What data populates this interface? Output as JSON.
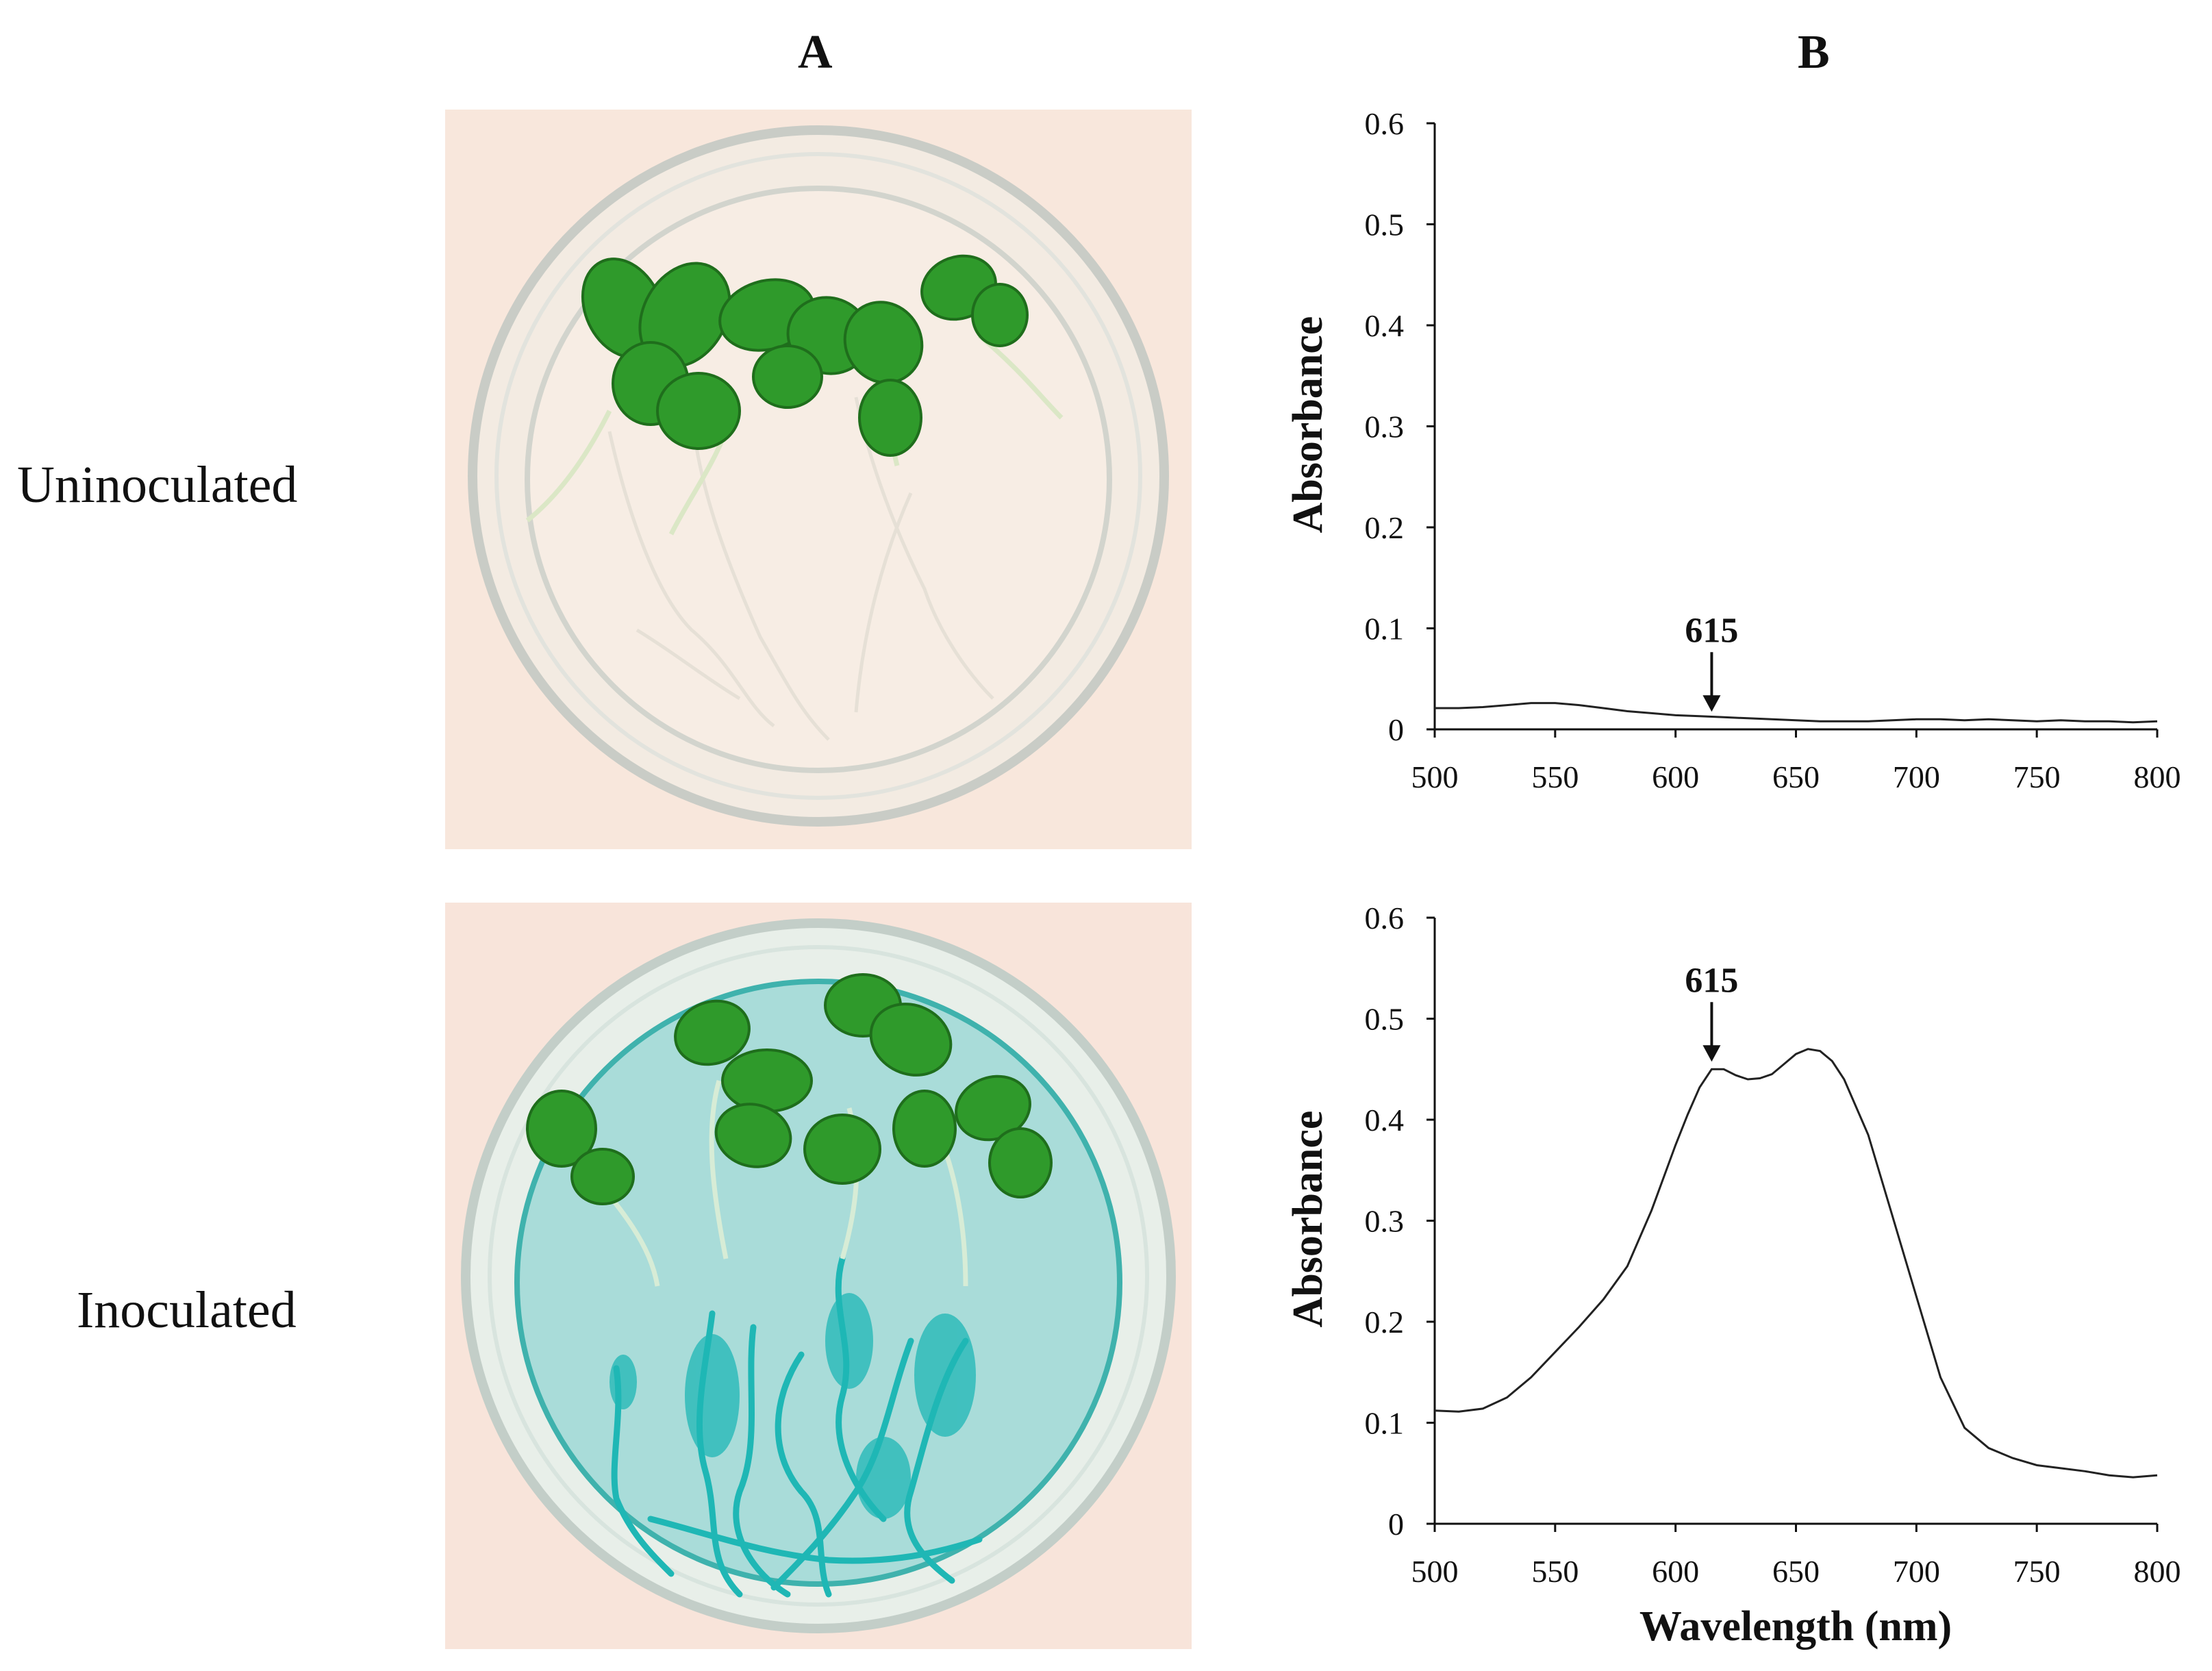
{
  "figure": {
    "panel_a_label": "A",
    "panel_b_label": "B",
    "rows": [
      {
        "label": "Uninoculated",
        "medium_color": "#f7ece2",
        "stain_color": "#e8e0d4"
      },
      {
        "label": "Inoculated",
        "medium_color": "#a9dcd9",
        "stain_color": "#1fb7b5"
      }
    ],
    "colors": {
      "background": "#f8e6da",
      "leaf": "#2f9a2b",
      "leaf_dark": "#1f6e1c",
      "stem": "#dbe8c0",
      "glass": "#cfd6d0"
    }
  },
  "chart_data": [
    {
      "type": "line",
      "title": "",
      "xlabel": "",
      "ylabel": "Absorbance",
      "xlim": [
        500,
        800
      ],
      "ylim": [
        0,
        0.6
      ],
      "xticks": [
        "500",
        "550",
        "600",
        "650",
        "700",
        "750",
        "800"
      ],
      "yticks": [
        "0",
        "0.1",
        "0.2",
        "0.3",
        "0.4",
        "0.5",
        "0.6"
      ],
      "annotation": {
        "text": "615",
        "x": 615,
        "y": 0.012
      },
      "series": [
        {
          "name": "Uninoculated",
          "x": [
            500,
            510,
            520,
            530,
            540,
            550,
            560,
            570,
            580,
            590,
            600,
            610,
            620,
            630,
            640,
            650,
            660,
            670,
            680,
            690,
            700,
            710,
            720,
            730,
            740,
            750,
            760,
            770,
            780,
            790,
            800
          ],
          "y": [
            0.021,
            0.021,
            0.022,
            0.024,
            0.026,
            0.026,
            0.024,
            0.021,
            0.018,
            0.016,
            0.014,
            0.013,
            0.012,
            0.011,
            0.01,
            0.009,
            0.008,
            0.008,
            0.008,
            0.009,
            0.01,
            0.01,
            0.009,
            0.01,
            0.009,
            0.008,
            0.009,
            0.008,
            0.008,
            0.007,
            0.008
          ]
        }
      ]
    },
    {
      "type": "line",
      "title": "",
      "xlabel": "Wavelength (nm)",
      "ylabel": "Absorbance",
      "xlim": [
        500,
        800
      ],
      "ylim": [
        0,
        0.6
      ],
      "xticks": [
        "500",
        "550",
        "600",
        "650",
        "700",
        "750",
        "800"
      ],
      "yticks": [
        "0",
        "0.1",
        "0.2",
        "0.3",
        "0.4",
        "0.5",
        "0.6"
      ],
      "annotation": {
        "text": "615",
        "x": 615,
        "y": 0.452
      },
      "series": [
        {
          "name": "Inoculated",
          "x": [
            500,
            510,
            520,
            530,
            540,
            550,
            560,
            570,
            580,
            590,
            600,
            605,
            610,
            615,
            620,
            625,
            630,
            635,
            640,
            645,
            650,
            655,
            660,
            665,
            670,
            680,
            690,
            700,
            710,
            720,
            730,
            740,
            750,
            760,
            770,
            780,
            790,
            800
          ],
          "y": [
            0.112,
            0.111,
            0.114,
            0.125,
            0.145,
            0.17,
            0.195,
            0.222,
            0.255,
            0.31,
            0.375,
            0.405,
            0.432,
            0.45,
            0.45,
            0.444,
            0.44,
            0.441,
            0.445,
            0.455,
            0.465,
            0.47,
            0.468,
            0.458,
            0.44,
            0.385,
            0.305,
            0.225,
            0.145,
            0.095,
            0.075,
            0.065,
            0.058,
            0.055,
            0.052,
            0.048,
            0.046,
            0.048
          ]
        }
      ]
    }
  ]
}
